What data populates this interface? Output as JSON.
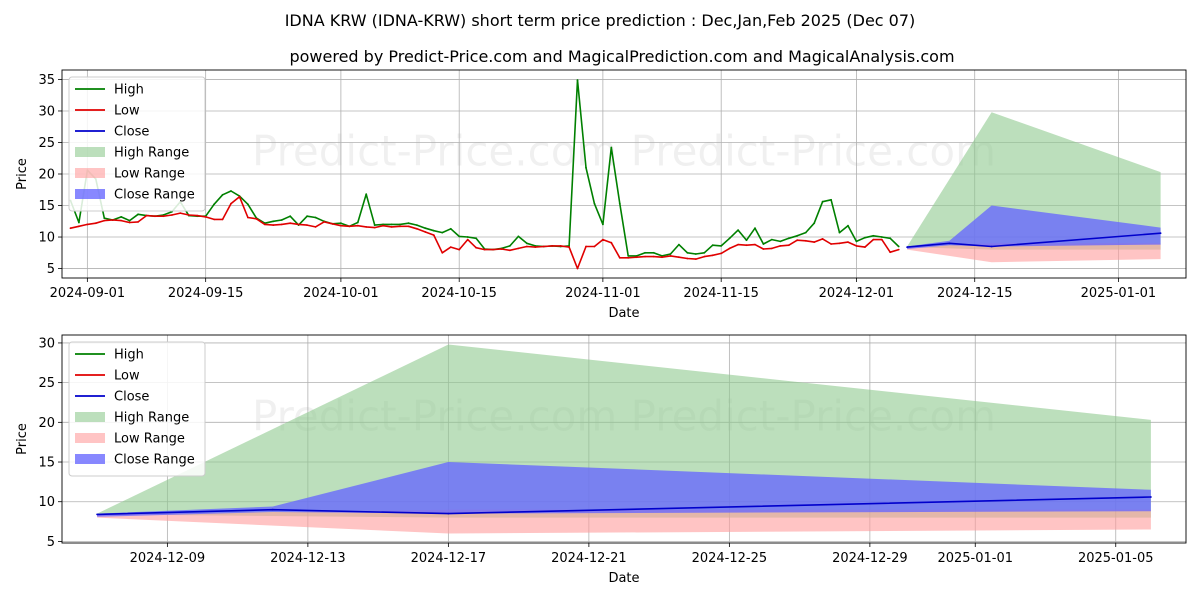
{
  "title": "IDNA KRW (IDNA-KRW) short term price prediction : Dec,Jan,Feb 2025 (Dec 07)",
  "subtitle": "powered by Predict-Price.com and MagicalPrediction.com and MagicalAnalysis.com",
  "watermark": "Predict-Price.com   Predict-Price.com",
  "colors": {
    "high": "#008000",
    "low": "#e00000",
    "close": "#0000cc",
    "high_range": "#8fc98f",
    "low_range": "#ff9c9c",
    "close_range": "#6666ff",
    "grid": "#b0b0b0"
  },
  "chart_data": [
    {
      "type": "line",
      "panel": "history-and-forecast",
      "xlabel": "Date",
      "ylabel": "Price",
      "x_start": "2024-08-29",
      "x_end": "2025-01-09",
      "ylim": [
        3.5,
        36.5
      ],
      "grid": true,
      "legend_position": "top-left",
      "x_ticks": [
        "2024-09-01",
        "2024-09-15",
        "2024-10-01",
        "2024-10-15",
        "2024-11-01",
        "2024-11-15",
        "2024-12-01",
        "2024-12-15",
        "2025-01-01"
      ],
      "y_ticks": [
        5,
        10,
        15,
        20,
        25,
        30,
        35
      ],
      "legend": [
        "High",
        "Low",
        "Close",
        "High Range",
        "Low Range",
        "Close Range"
      ],
      "series": [
        {
          "name": "High",
          "dates": [
            "2024-08-30",
            "2024-08-31",
            "2024-09-01",
            "2024-09-02",
            "2024-09-03",
            "2024-09-04",
            "2024-09-05",
            "2024-09-06",
            "2024-09-07",
            "2024-09-08",
            "2024-09-09",
            "2024-09-10",
            "2024-09-11",
            "2024-09-12",
            "2024-09-13",
            "2024-09-14",
            "2024-09-15",
            "2024-09-16",
            "2024-09-17",
            "2024-09-18",
            "2024-09-19",
            "2024-09-20",
            "2024-09-21",
            "2024-09-22",
            "2024-09-23",
            "2024-09-24",
            "2024-09-25",
            "2024-09-26",
            "2024-09-27",
            "2024-09-28",
            "2024-09-29",
            "2024-09-30",
            "2024-10-01",
            "2024-10-02",
            "2024-10-03",
            "2024-10-04",
            "2024-10-05",
            "2024-10-06",
            "2024-10-07",
            "2024-10-08",
            "2024-10-09",
            "2024-10-10",
            "2024-10-11",
            "2024-10-12",
            "2024-10-13",
            "2024-10-14",
            "2024-10-15",
            "2024-10-16",
            "2024-10-17",
            "2024-10-18",
            "2024-10-19",
            "2024-10-20",
            "2024-10-21",
            "2024-10-22",
            "2024-10-23",
            "2024-10-24",
            "2024-10-25",
            "2024-10-26",
            "2024-10-27",
            "2024-10-28",
            "2024-10-29",
            "2024-10-30",
            "2024-10-31",
            "2024-11-01",
            "2024-11-02",
            "2024-11-03",
            "2024-11-04",
            "2024-11-05",
            "2024-11-06",
            "2024-11-07",
            "2024-11-08",
            "2024-11-09",
            "2024-11-10",
            "2024-11-11",
            "2024-11-12",
            "2024-11-13",
            "2024-11-14",
            "2024-11-15",
            "2024-11-16",
            "2024-11-17",
            "2024-11-18",
            "2024-11-19",
            "2024-11-20",
            "2024-11-21",
            "2024-11-22",
            "2024-11-23",
            "2024-11-24",
            "2024-11-25",
            "2024-11-26",
            "2024-11-27",
            "2024-11-28",
            "2024-11-29",
            "2024-11-30",
            "2024-12-01",
            "2024-12-02",
            "2024-12-03",
            "2024-12-04",
            "2024-12-05",
            "2024-12-06"
          ],
          "values": [
            15.8,
            12.3,
            20.6,
            19.2,
            13.0,
            12.7,
            13.2,
            12.6,
            13.6,
            13.4,
            13.3,
            13.5,
            14.0,
            15.6,
            13.4,
            13.3,
            13.3,
            15.2,
            16.7,
            17.3,
            16.5,
            15.2,
            13.0,
            12.2,
            12.5,
            12.7,
            13.3,
            11.9,
            13.3,
            13.1,
            12.5,
            12.1,
            12.2,
            11.7,
            12.3,
            16.8,
            11.9,
            12.0,
            12.0,
            12.0,
            12.2,
            11.9,
            11.4,
            11.0,
            10.7,
            11.3,
            10.1,
            10.0,
            9.8,
            8.1,
            8.0,
            8.2,
            8.6,
            10.1,
            9.0,
            8.6,
            8.5,
            8.6,
            8.5,
            8.6,
            34.9,
            21.0,
            15.3,
            12.0,
            24.2,
            15.3,
            7.0,
            7.0,
            7.5,
            7.5,
            7.0,
            7.3,
            8.8,
            7.5,
            7.3,
            7.5,
            8.7,
            8.6,
            9.8,
            11.1,
            9.5,
            11.4,
            8.9,
            9.6,
            9.3,
            9.8,
            10.2,
            10.7,
            12.2,
            15.6,
            15.9,
            10.7,
            11.8,
            9.3,
            9.9,
            10.2,
            10.0,
            9.8,
            8.5
          ]
        },
        {
          "name": "Low",
          "dates": [
            "2024-08-30",
            "2024-08-31",
            "2024-09-01",
            "2024-09-02",
            "2024-09-03",
            "2024-09-04",
            "2024-09-05",
            "2024-09-06",
            "2024-09-07",
            "2024-09-08",
            "2024-09-09",
            "2024-09-10",
            "2024-09-11",
            "2024-09-12",
            "2024-09-13",
            "2024-09-14",
            "2024-09-15",
            "2024-09-16",
            "2024-09-17",
            "2024-09-18",
            "2024-09-19",
            "2024-09-20",
            "2024-09-21",
            "2024-09-22",
            "2024-09-23",
            "2024-09-24",
            "2024-09-25",
            "2024-09-26",
            "2024-09-27",
            "2024-09-28",
            "2024-09-29",
            "2024-09-30",
            "2024-10-01",
            "2024-10-02",
            "2024-10-03",
            "2024-10-04",
            "2024-10-05",
            "2024-10-06",
            "2024-10-07",
            "2024-10-08",
            "2024-10-09",
            "2024-10-10",
            "2024-10-11",
            "2024-10-12",
            "2024-10-13",
            "2024-10-14",
            "2024-10-15",
            "2024-10-16",
            "2024-10-17",
            "2024-10-18",
            "2024-10-19",
            "2024-10-20",
            "2024-10-21",
            "2024-10-22",
            "2024-10-23",
            "2024-10-24",
            "2024-10-25",
            "2024-10-26",
            "2024-10-27",
            "2024-10-28",
            "2024-10-29",
            "2024-10-30",
            "2024-10-31",
            "2024-11-01",
            "2024-11-02",
            "2024-11-03",
            "2024-11-04",
            "2024-11-05",
            "2024-11-06",
            "2024-11-07",
            "2024-11-08",
            "2024-11-09",
            "2024-11-10",
            "2024-11-11",
            "2024-11-12",
            "2024-11-13",
            "2024-11-14",
            "2024-11-15",
            "2024-11-16",
            "2024-11-17",
            "2024-11-18",
            "2024-11-19",
            "2024-11-20",
            "2024-11-21",
            "2024-11-22",
            "2024-11-23",
            "2024-11-24",
            "2024-11-25",
            "2024-11-26",
            "2024-11-27",
            "2024-11-28",
            "2024-11-29",
            "2024-11-30",
            "2024-12-01",
            "2024-12-02",
            "2024-12-03",
            "2024-12-04",
            "2024-12-05",
            "2024-12-06"
          ],
          "values": [
            11.4,
            11.7,
            12.0,
            12.2,
            12.6,
            12.7,
            12.6,
            12.3,
            12.4,
            13.4,
            13.3,
            13.3,
            13.5,
            13.8,
            13.5,
            13.4,
            13.2,
            12.8,
            12.8,
            15.3,
            16.4,
            13.1,
            12.9,
            12.0,
            11.9,
            12.0,
            12.2,
            12.0,
            11.9,
            11.6,
            12.4,
            12.1,
            11.8,
            11.7,
            11.8,
            11.6,
            11.5,
            11.8,
            11.6,
            11.7,
            11.7,
            11.3,
            10.8,
            10.3,
            7.5,
            8.4,
            8.0,
            9.6,
            8.3,
            8.0,
            8.0,
            8.1,
            7.9,
            8.2,
            8.5,
            8.4,
            8.5,
            8.6,
            8.6,
            8.4,
            5.0,
            8.5,
            8.5,
            9.6,
            9.1,
            6.7,
            6.7,
            6.8,
            6.9,
            6.9,
            6.8,
            7.0,
            6.8,
            6.6,
            6.5,
            6.9,
            7.1,
            7.4,
            8.2,
            8.8,
            8.7,
            8.8,
            8.1,
            8.2,
            8.6,
            8.7,
            9.5,
            9.4,
            9.2,
            9.7,
            8.9,
            9.0,
            9.2,
            8.6,
            8.4,
            9.6,
            9.6,
            7.6,
            8.0
          ]
        },
        {
          "name": "Close",
          "dates": [
            "2024-12-07",
            "2024-12-12",
            "2024-12-17",
            "2025-01-06"
          ],
          "values": [
            8.4,
            9.0,
            8.5,
            10.6
          ]
        }
      ],
      "bands": [
        {
          "name": "High Range",
          "dates": [
            "2024-12-07",
            "2024-12-17",
            "2025-01-06"
          ],
          "lower": [
            8.4,
            8.0,
            8.0
          ],
          "upper": [
            8.5,
            29.8,
            20.3
          ]
        },
        {
          "name": "Low Range",
          "dates": [
            "2024-12-07",
            "2024-12-17",
            "2025-01-06"
          ],
          "lower": [
            8.0,
            6.0,
            6.5
          ],
          "upper": [
            8.4,
            9.0,
            9.0
          ]
        },
        {
          "name": "Close Range",
          "dates": [
            "2024-12-07",
            "2024-12-12",
            "2024-12-17",
            "2025-01-06"
          ],
          "lower": [
            8.1,
            8.7,
            8.5,
            8.8
          ],
          "upper": [
            8.5,
            9.4,
            15.0,
            11.5
          ]
        }
      ]
    },
    {
      "type": "line",
      "panel": "forecast-detail",
      "xlabel": "Date",
      "ylabel": "Price",
      "x_start": "2024-12-06",
      "x_end": "2025-01-07",
      "ylim": [
        4.8,
        31.0
      ],
      "grid": true,
      "legend_position": "top-left",
      "x_ticks": [
        "2024-12-09",
        "2024-12-13",
        "2024-12-17",
        "2024-12-21",
        "2024-12-25",
        "2024-12-29",
        "2025-01-01",
        "2025-01-05"
      ],
      "y_ticks": [
        5,
        10,
        15,
        20,
        25,
        30
      ],
      "legend": [
        "High",
        "Low",
        "Close",
        "High Range",
        "Low Range",
        "Close Range"
      ],
      "series": [
        {
          "name": "Close",
          "dates": [
            "2024-12-07",
            "2024-12-12",
            "2024-12-17",
            "2025-01-06"
          ],
          "values": [
            8.4,
            9.0,
            8.5,
            10.6
          ]
        }
      ],
      "bands": [
        {
          "name": "High Range",
          "dates": [
            "2024-12-07",
            "2024-12-17",
            "2025-01-06"
          ],
          "lower": [
            8.4,
            8.0,
            8.0
          ],
          "upper": [
            8.5,
            29.8,
            20.3
          ]
        },
        {
          "name": "Low Range",
          "dates": [
            "2024-12-07",
            "2024-12-17",
            "2025-01-06"
          ],
          "lower": [
            8.0,
            6.0,
            6.5
          ],
          "upper": [
            8.4,
            9.0,
            9.0
          ]
        },
        {
          "name": "Close Range",
          "dates": [
            "2024-12-07",
            "2024-12-12",
            "2024-12-17",
            "2025-01-06"
          ],
          "lower": [
            8.1,
            8.7,
            8.5,
            8.8
          ],
          "upper": [
            8.5,
            9.4,
            15.0,
            11.5
          ]
        }
      ]
    }
  ]
}
